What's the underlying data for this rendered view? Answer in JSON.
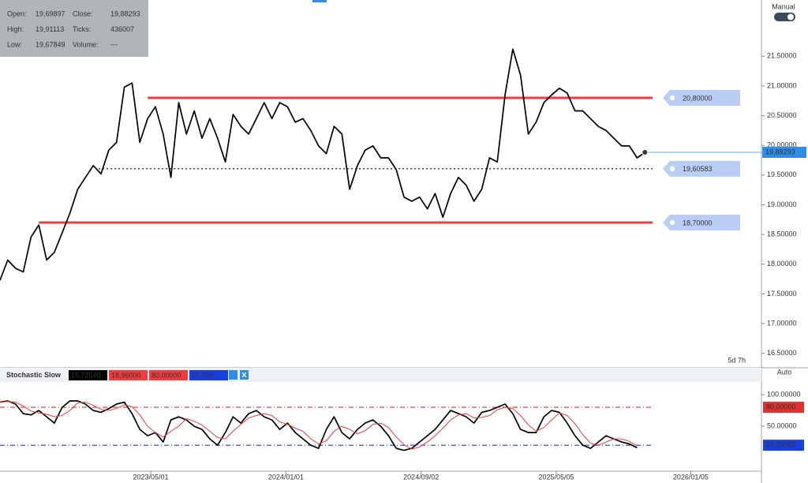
{
  "ui": {
    "info": [
      [
        "Open:",
        "19,69897",
        "Close:",
        "19,88293"
      ],
      [
        "High:",
        "19,91113",
        "Ticks:",
        436007
      ],
      [
        "Low:",
        "19,67849",
        "Volume:",
        "---"
      ]
    ],
    "mode_main": "Manual",
    "mode_sub": "Auto",
    "timer": "5d 7h"
  },
  "chart_data": [
    {
      "type": "line",
      "color": "#000000",
      "xlim": [
        0,
        98
      ],
      "ylim": [
        16.27,
        22.38
      ],
      "yticks": [
        {
          "value": 16.5,
          "label": "16.50000"
        },
        {
          "value": 17,
          "label": "17.00000"
        },
        {
          "value": 17.5,
          "label": "17.50000"
        },
        {
          "value": 18,
          "label": "18.00000"
        },
        {
          "value": 18.5,
          "label": "18.50000"
        },
        {
          "value": 19,
          "label": "19.00000"
        },
        {
          "value": 19.5,
          "label": "19.50000"
        },
        {
          "value": 20,
          "label": "20.00000"
        },
        {
          "value": 20.5,
          "label": "20.50000"
        },
        {
          "value": 21,
          "label": "21.00000"
        },
        {
          "value": 21.5,
          "label": "21.50000"
        }
      ],
      "values": [
        17.73,
        18.07,
        17.93,
        17.87,
        18.46,
        18.66,
        18.07,
        18.2,
        18.53,
        18.86,
        19.26,
        19.46,
        19.66,
        19.52,
        19.92,
        20.05,
        20.98,
        21.05,
        20.05,
        20.45,
        20.65,
        20.19,
        19.46,
        20.72,
        20.19,
        20.58,
        20.12,
        20.45,
        20.12,
        19.72,
        20.52,
        20.32,
        20.19,
        20.45,
        20.72,
        20.45,
        20.72,
        20.65,
        20.39,
        20.45,
        20.25,
        19.99,
        19.86,
        20.32,
        20.19,
        19.26,
        19.66,
        19.92,
        19.99,
        19.79,
        19.79,
        19.59,
        19.13,
        19.06,
        19.13,
        18.93,
        19.19,
        18.79,
        19.19,
        19.46,
        19.33,
        19.06,
        19.26,
        19.79,
        19.72,
        20.85,
        21.62,
        21.18,
        20.19,
        20.39,
        20.72,
        20.85,
        20.96,
        20.88,
        20.58,
        20.58,
        20.45,
        20.32,
        20.25,
        20.12,
        19.99,
        19.99,
        19.79,
        19.88
      ],
      "level_labels": "inline",
      "levels": [
        {
          "value": 20.8,
          "label": "20,80000",
          "color": "#f03c3c",
          "style": "solid",
          "x0": 19,
          "x1": 84
        },
        {
          "value": 19.60583,
          "label": "19,60583",
          "color": "#000000",
          "style": "dotted",
          "x0": 12.7,
          "x1": 84
        },
        {
          "value": 18.7,
          "label": "18,70000",
          "color": "#f03c3c",
          "style": "solid",
          "x0": 5,
          "x1": 84
        }
      ],
      "price_marker": {
        "value": 19.88293,
        "label": "19,88293",
        "color": "#2f8de4"
      }
    },
    {
      "type": "line",
      "title": "Stochastic Slow",
      "xlim": [
        0,
        98
      ],
      "ylim": [
        -21,
        120
      ],
      "readouts": [
        {
          "text": "15,72640",
          "color": "#000000"
        },
        {
          "text": "18,96000",
          "color": "#f03c3c"
        },
        {
          "text": "80,00000",
          "color": "#f03c3c"
        },
        {
          "text": "20,000...",
          "color": "#1a3fe0"
        }
      ],
      "yticks": [
        {
          "value": 50,
          "label": "50.00000"
        },
        {
          "value": 100,
          "label": "100.00000"
        }
      ],
      "xticks": [
        {
          "value": 19.4,
          "label": "2023/05/01"
        },
        {
          "value": 36.8,
          "label": "2024/01/01"
        },
        {
          "value": 54.2,
          "label": "2024/09/02"
        },
        {
          "value": 71.6,
          "label": "2025/05/05"
        },
        {
          "value": 88.9,
          "label": "2026/01/05"
        }
      ],
      "series": [
        {
          "color": "#000000",
          "values": [
            88,
            90,
            85,
            70,
            68,
            75,
            65,
            55,
            80,
            90,
            90,
            85,
            75,
            72,
            78,
            85,
            88,
            70,
            45,
            35,
            40,
            25,
            60,
            65,
            60,
            50,
            45,
            30,
            20,
            40,
            65,
            55,
            70,
            75,
            65,
            60,
            45,
            55,
            40,
            30,
            20,
            15,
            45,
            65,
            40,
            30,
            45,
            55,
            60,
            50,
            35,
            15,
            12,
            15,
            25,
            35,
            45,
            60,
            75,
            70,
            65,
            55,
            72,
            75,
            80,
            85,
            70,
            45,
            40,
            40,
            65,
            75,
            72,
            55,
            35,
            20,
            15,
            25,
            35,
            30,
            25,
            22,
            16
          ]
        },
        {
          "color": "#f03c3c",
          "values": [
            88,
            89,
            88,
            82,
            74,
            71,
            69,
            65,
            67,
            75,
            87,
            88,
            83,
            77,
            75,
            78,
            84,
            81,
            68,
            50,
            40,
            33,
            42,
            50,
            62,
            58,
            52,
            42,
            32,
            30,
            42,
            53,
            63,
            67,
            70,
            67,
            57,
            53,
            47,
            42,
            30,
            22,
            27,
            42,
            50,
            45,
            38,
            43,
            53,
            55,
            48,
            33,
            21,
            14,
            17,
            25,
            35,
            47,
            60,
            68,
            70,
            63,
            64,
            67,
            76,
            80,
            78,
            67,
            52,
            42,
            48,
            60,
            71,
            67,
            54,
            37,
            23,
            20,
            25,
            30,
            30,
            26,
            19
          ]
        }
      ],
      "level_labels": "axis",
      "levels": [
        {
          "value": 80,
          "label": "80,00000",
          "color": "#e03030",
          "style": "dashdot",
          "x0": 0,
          "x1": 84
        },
        {
          "value": 20,
          "label": "20,00000",
          "color": "#1a3fe0",
          "style": "dashdot",
          "x0": 0,
          "x1": 84
        }
      ]
    }
  ]
}
